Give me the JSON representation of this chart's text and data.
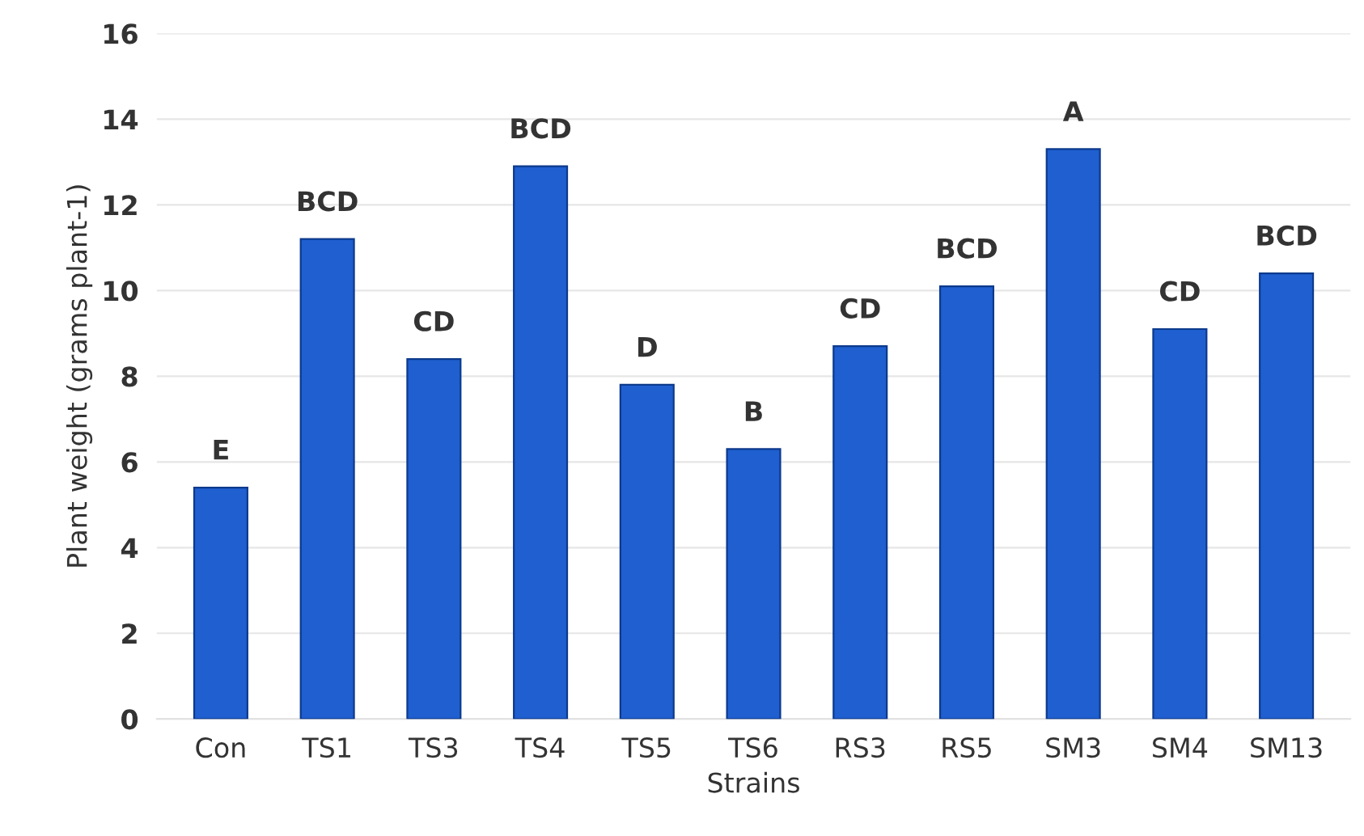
{
  "chart_data": {
    "type": "bar",
    "xlabel": "Strains",
    "ylabel": "Plant weight (grams plant-1)",
    "categories": [
      "Con",
      "TS1",
      "TS3",
      "TS4",
      "TS5",
      "TS6",
      "RS3",
      "RS5",
      "SM3",
      "SM4",
      "SM13"
    ],
    "values": [
      5.4,
      11.2,
      8.4,
      12.9,
      7.8,
      6.3,
      8.7,
      10.1,
      13.3,
      9.1,
      10.4
    ],
    "value_labels": [
      "E",
      "BCD",
      "CD",
      "BCD",
      "D",
      "B",
      "CD",
      "BCD",
      "A",
      "CD",
      "BCD"
    ],
    "color": "#1f5fd0",
    "ylim": [
      0,
      16
    ],
    "yticks": [
      0,
      2,
      4,
      6,
      8,
      10,
      12,
      14,
      16
    ],
    "grid": "y"
  }
}
